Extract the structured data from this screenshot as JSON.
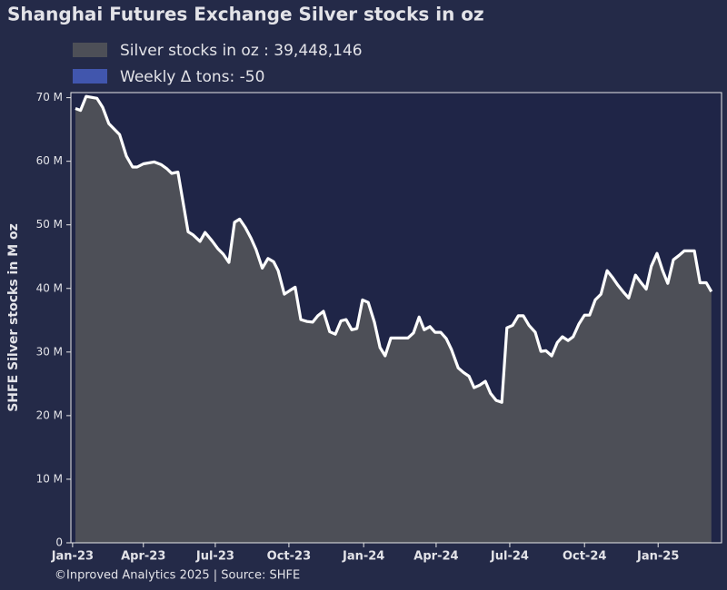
{
  "chart_data": {
    "type": "area",
    "title": "Shanghai Futures Exchange Silver stocks in oz",
    "y_label": "SHFE Silver stocks in M oz",
    "footer": "©Inproved Analytics 2025 | Source: SHFE",
    "grid": false,
    "legend_position": "top-left",
    "x": [
      0.5,
      1.4,
      2.4,
      4.3,
      5.3,
      6.4,
      8.3,
      9.5,
      10.6,
      11.4,
      12.5,
      14.4,
      15.6,
      16.7,
      17.5,
      18.6,
      20.4,
      21.3,
      22.5,
      23.4,
      24.6,
      25.7,
      26.6,
      27.6,
      28.6,
      29.5,
      30.5,
      31.5,
      32.4,
      33.5,
      34.5,
      35.5,
      36.3,
      37.4,
      38.4,
      39.3,
      40.3,
      41.4,
      42.4,
      43.3,
      44.3,
      45.4,
      46.4,
      47.4,
      48.3,
      49.3,
      50.2,
      51.2,
      52.2,
      53.3,
      54.3,
      55.2,
      56.2,
      57.1,
      58.3,
      59.2,
      60.2,
      61.2,
      62.1,
      63.1,
      64.0,
      65.0,
      66.0,
      66.9,
      68.1,
      69.0,
      70.0,
      70.9,
      71.9,
      72.9,
      73.8,
      74.8,
      75.8,
      76.7,
      77.7,
      78.7,
      79.6,
      80.6,
      81.7,
      82.7,
      83.6,
      84.6,
      85.6,
      86.5,
      87.5,
      88.4,
      89.4,
      90.4,
      91.3,
      92.3,
      93.3,
      94.4,
      95.3,
      96.3,
      97.3,
      98.2,
      99.4,
      100.3,
      101.3,
      102.2,
      103.2,
      104.2,
      105.1,
      106.1,
      107.1,
      108.0,
      108.8,
      109.8,
      110.8,
      111.9,
      112.8
    ],
    "series": [
      {
        "name": "Silver stocks in oz : 39,448,146",
        "color": "#4d4f57",
        "line_color": "#ffffff",
        "values": [
          68.3,
          68.0,
          70.2,
          69.9,
          68.5,
          65.9,
          64.2,
          60.8,
          59.1,
          59.1,
          59.6,
          59.9,
          59.5,
          58.8,
          58.1,
          58.3,
          48.9,
          48.4,
          47.4,
          48.8,
          47.5,
          46.2,
          45.4,
          44.1,
          50.4,
          50.9,
          49.6,
          47.9,
          46.1,
          43.2,
          44.7,
          44.2,
          42.8,
          39.1,
          39.7,
          40.2,
          35.1,
          34.8,
          34.7,
          35.7,
          36.4,
          33.2,
          32.8,
          34.9,
          35.1,
          33.5,
          33.7,
          38.2,
          37.8,
          34.7,
          30.7,
          29.4,
          32.2,
          32.2,
          32.2,
          32.2,
          33.0,
          35.5,
          33.5,
          34.0,
          33.1,
          33.1,
          32.1,
          30.4,
          27.5,
          26.8,
          26.2,
          24.4,
          24.8,
          25.4,
          23.5,
          22.4,
          22.1,
          33.8,
          34.2,
          35.7,
          35.7,
          34.2,
          33.1,
          30.1,
          30.2,
          29.4,
          31.5,
          32.4,
          31.8,
          32.4,
          34.4,
          35.8,
          35.8,
          38.2,
          39.1,
          42.8,
          41.8,
          40.5,
          39.4,
          38.5,
          42.1,
          41.0,
          39.9,
          43.5,
          45.5,
          42.8,
          40.8,
          44.5,
          45.2,
          45.9,
          45.9,
          45.9,
          40.9,
          40.9,
          39.5
        ]
      }
    ],
    "extra_legend": {
      "label": "Weekly Δ tons: -50",
      "color": "#4156ad"
    },
    "xlim": [
      -0.3,
      114.6
    ],
    "xticks": [
      {
        "value": 0,
        "label": "Jan-23"
      },
      {
        "value": 12.5,
        "label": "Apr-23"
      },
      {
        "value": 25.2,
        "label": "Jul-23"
      },
      {
        "value": 38.2,
        "label": "Oct-23"
      },
      {
        "value": 51.4,
        "label": "Jan-24"
      },
      {
        "value": 64.2,
        "label": "Apr-24"
      },
      {
        "value": 77.2,
        "label": "Jul-24"
      },
      {
        "value": 90.4,
        "label": "Oct-24"
      },
      {
        "value": 103.4,
        "label": "Jan-25"
      }
    ],
    "ylim": [
      0,
      70.8
    ],
    "yticks": [
      0,
      {
        "value": 10,
        "label": "10 M"
      },
      {
        "value": 20,
        "label": "20 M"
      },
      {
        "value": 30,
        "label": "30 M"
      },
      {
        "value": 40,
        "label": "40 M"
      },
      {
        "value": 50,
        "label": "50 M"
      },
      {
        "value": 60,
        "label": "60 M"
      },
      {
        "value": 70,
        "label": "70 M"
      }
    ]
  }
}
